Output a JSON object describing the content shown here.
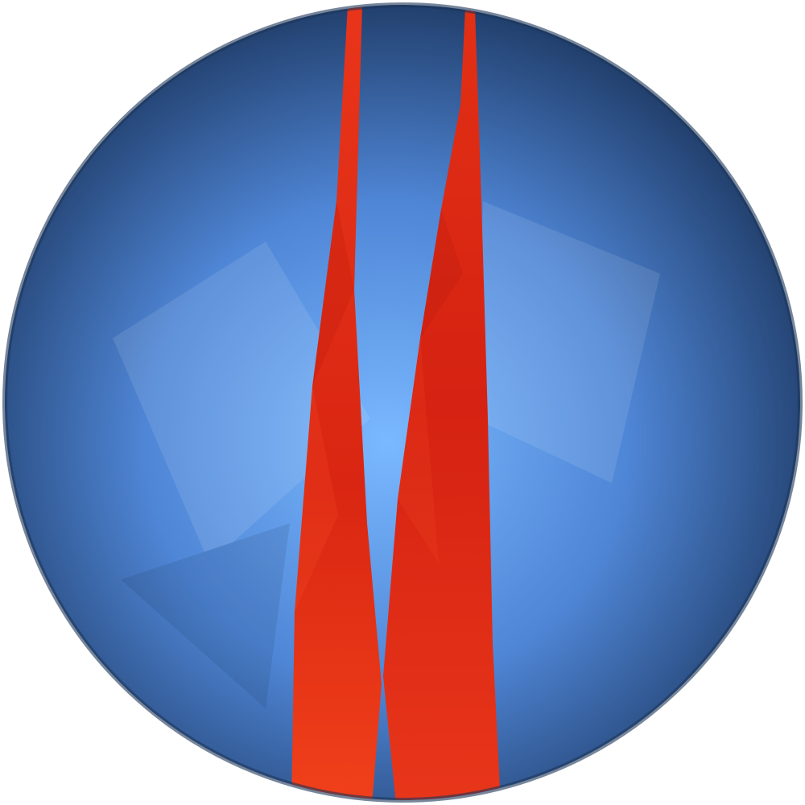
{
  "image": {
    "icon": "blue-sphere-with-red-ribbons-logo",
    "colors": {
      "background": "#ffffff",
      "sphere_center": "#7ab8ff",
      "sphere_mid": "#4f86d6",
      "sphere_edge": "#22406e",
      "ribbon_light": "#f0401a",
      "ribbon_dark": "#cf1f10"
    }
  }
}
